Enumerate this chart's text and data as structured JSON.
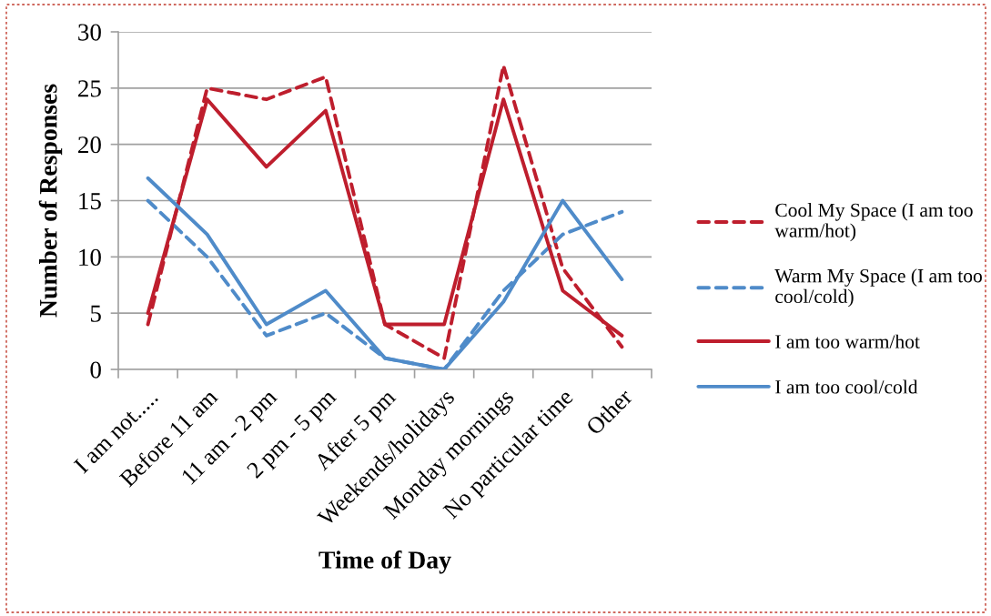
{
  "chart_data": {
    "type": "line",
    "xlabel": "Time of Day",
    "ylabel": "Number of Responses",
    "categories": [
      "I am not.....",
      "Before 11 am",
      "11 am - 2 pm",
      "2 pm - 5 pm",
      "After 5 pm",
      "Weekends/holidays",
      "Monday mornings",
      "No particular time",
      "Other"
    ],
    "ylim": [
      0,
      30
    ],
    "yticks": [
      0,
      5,
      10,
      15,
      20,
      25,
      30
    ],
    "grid": "y",
    "legend": "right",
    "marker": "none",
    "series": [
      {
        "name": "Cool My Space (I am too warm/hot)",
        "color": "#be1e2d",
        "line_style": "dashed",
        "values": [
          4,
          25,
          24,
          26,
          4,
          1,
          27,
          9,
          2
        ]
      },
      {
        "name": "Warm My Space (I am too cool/cold)",
        "color": "#4f8bc9",
        "line_style": "dashed",
        "values": [
          15,
          10,
          3,
          5,
          1,
          0,
          7,
          12,
          14
        ]
      },
      {
        "name": "I am too warm/hot",
        "color": "#be1e2d",
        "line_style": "solid",
        "values": [
          5,
          24,
          18,
          23,
          4,
          4,
          24,
          7,
          3
        ]
      },
      {
        "name": "I am too cool/cold",
        "color": "#4f8bc9",
        "line_style": "solid",
        "values": [
          17,
          12,
          4,
          7,
          1,
          0,
          6,
          15,
          8
        ]
      }
    ]
  }
}
